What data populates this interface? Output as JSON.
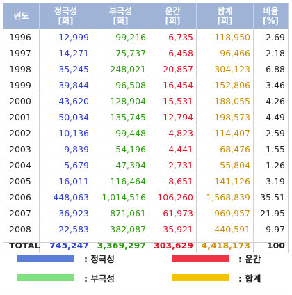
{
  "headers": [
    {
      "line1": "년도",
      "line2": ""
    },
    {
      "line1": "정극성",
      "line2": "[회]"
    },
    {
      "line1": "부극성",
      "line2": "[회]"
    },
    {
      "line1": "운간",
      "line2": "[회]"
    },
    {
      "line1": "합계",
      "line2": "[회]"
    },
    {
      "line1": "비율",
      "line2": "[%]"
    }
  ],
  "rows": [
    {
      "year": "1996",
      "pos": "12,999",
      "neg": "99,216",
      "cloud": "6,735",
      "sum": "118,950",
      "pct": "2.69"
    },
    {
      "year": "1997",
      "pos": "14,271",
      "neg": "75,737",
      "cloud": "6,458",
      "sum": "96,466",
      "pct": "2.18"
    },
    {
      "year": "1998",
      "pos": "35,245",
      "neg": "248,021",
      "cloud": "20,857",
      "sum": "304,123",
      "pct": "6.88"
    },
    {
      "year": "1999",
      "pos": "39,844",
      "neg": "96,508",
      "cloud": "16,454",
      "sum": "152,806",
      "pct": "3.46"
    },
    {
      "year": "2000",
      "pos": "43,620",
      "neg": "128,904",
      "cloud": "15,531",
      "sum": "188,055",
      "pct": "4.26"
    },
    {
      "year": "2001",
      "pos": "50,034",
      "neg": "135,745",
      "cloud": "12,794",
      "sum": "198,573",
      "pct": "4.49"
    },
    {
      "year": "2002",
      "pos": "10,136",
      "neg": "99,448",
      "cloud": "4,823",
      "sum": "114,407",
      "pct": "2.59"
    },
    {
      "year": "2003",
      "pos": "9,839",
      "neg": "54,196",
      "cloud": "4,441",
      "sum": "68,476",
      "pct": "1.55"
    },
    {
      "year": "2004",
      "pos": "5,679",
      "neg": "47,394",
      "cloud": "2,731",
      "sum": "55,804",
      "pct": "1.26"
    },
    {
      "year": "2005",
      "pos": "16,011",
      "neg": "116,464",
      "cloud": "8,651",
      "sum": "141,126",
      "pct": "3.19"
    },
    {
      "year": "2006",
      "pos": "448,063",
      "neg": "1,014,516",
      "cloud": "106,260",
      "sum": "1,568,839",
      "pct": "35.51"
    },
    {
      "year": "2007",
      "pos": "36,923",
      "neg": "871,061",
      "cloud": "61,973",
      "sum": "969,957",
      "pct": "21.95"
    },
    {
      "year": "2008",
      "pos": "22,583",
      "neg": "382,087",
      "cloud": "35,921",
      "sum": "440,591",
      "pct": "9.97"
    }
  ],
  "total": {
    "year": "TOTAL",
    "pos": "745,247",
    "neg": "3,369,297",
    "cloud": "303,629",
    "sum": "4,418,173",
    "pct": "100"
  },
  "legend": [
    {
      "label": ": 정극성",
      "color": "#5b7fd9"
    },
    {
      "label": ": 운간",
      "color": "#ee3344"
    },
    {
      "label": ": 부극성",
      "color": "#7fe07f"
    },
    {
      "label": ": 합계",
      "color": "#f5c400"
    }
  ]
}
